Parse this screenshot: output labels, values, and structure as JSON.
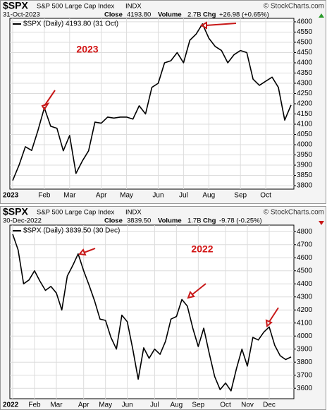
{
  "chart_data": [
    {
      "type": "line",
      "symbol": "$SPX",
      "name": "S&P 500 Large Cap Index",
      "exchange": "INDX",
      "date": "31-Oct-2023",
      "close_label": "Close",
      "close": "4193.80",
      "volume_label": "Volume",
      "volume": "2.7B",
      "chg_label": "Chg",
      "chg": "+26.98 (+0.65%)",
      "watermark": "© StockCharts.com",
      "annotation": "2023",
      "categories": [
        "2023",
        null,
        null,
        null,
        null,
        "Feb",
        null,
        null,
        null,
        "Mar",
        null,
        null,
        null,
        null,
        "Apr",
        null,
        null,
        null,
        "May",
        null,
        null,
        null,
        null,
        "Jun",
        null,
        null,
        null,
        "Jul",
        null,
        null,
        null,
        "Aug",
        null,
        null,
        null,
        null,
        "Sep",
        null,
        null,
        null,
        "Oct",
        null,
        null,
        null,
        null
      ],
      "series": [
        {
          "name": "$SPX (Daily) 4193.80 (31 Oct)",
          "color": "#000000",
          "values": [
            3825,
            3900,
            3990,
            3972,
            4070,
            4180,
            4090,
            4080,
            3970,
            4045,
            3860,
            3920,
            3970,
            4110,
            4105,
            4135,
            4130,
            4135,
            4135,
            4125,
            4190,
            4150,
            4280,
            4300,
            4400,
            4410,
            4450,
            4400,
            4510,
            4540,
            4590,
            4520,
            4480,
            4460,
            4400,
            4440,
            4460,
            4450,
            4320,
            4290,
            4310,
            4330,
            4280,
            4120,
            4193.8
          ]
        }
      ],
      "ylim": [
        3783,
        4617
      ],
      "yticks": [
        3800,
        3850,
        3900,
        3950,
        4000,
        4050,
        4100,
        4150,
        4200,
        4250,
        4300,
        4350,
        4400,
        4450,
        4500,
        4550,
        4600
      ],
      "grid": true
    },
    {
      "type": "line",
      "symbol": "$SPX",
      "name": "S&P 500 Large Cap Index",
      "exchange": "INDX",
      "date": "30-Dec-2022",
      "close_label": "Close",
      "close": "3839.50",
      "volume_label": "Volume",
      "volume": "1.7B",
      "chg_label": "Chg",
      "chg": "-9.78 (-0.25%)",
      "watermark": "© StockCharts.com",
      "annotation": "2022",
      "categories": [
        "2022",
        null,
        null,
        null,
        "Feb",
        null,
        null,
        null,
        "Mar",
        null,
        null,
        null,
        null,
        "Apr",
        null,
        null,
        null,
        "May",
        null,
        null,
        null,
        "Jun",
        null,
        null,
        null,
        null,
        "Jul",
        null,
        null,
        null,
        "Aug",
        null,
        null,
        null,
        "Sep",
        null,
        null,
        null,
        null,
        "Oct",
        null,
        null,
        null,
        "Nov",
        null,
        null,
        null,
        "Dec",
        null,
        null,
        null,
        null
      ],
      "series": [
        {
          "name": "$SPX (Daily) 3839.50 (30 Dec)",
          "color": "#000000",
          "values": [
            4780,
            4660,
            4400,
            4430,
            4500,
            4420,
            4350,
            4380,
            4330,
            4200,
            4460,
            4540,
            4630,
            4500,
            4390,
            4270,
            4130,
            4120,
            3990,
            3900,
            4160,
            4110,
            3900,
            3670,
            3910,
            3830,
            3900,
            3860,
            3960,
            4130,
            4150,
            4280,
            4230,
            4060,
            3920,
            4060,
            3870,
            3690,
            3590,
            3640,
            3580,
            3750,
            3900,
            3770,
            3990,
            3970,
            4030,
            4070,
            3930,
            3850,
            3820,
            3839.5
          ]
        }
      ],
      "ylim": [
        3520,
        4850
      ],
      "yticks": [
        3600,
        3700,
        3800,
        3900,
        4000,
        4100,
        4200,
        4300,
        4400,
        4500,
        4600,
        4700,
        4800
      ],
      "grid": true
    }
  ]
}
